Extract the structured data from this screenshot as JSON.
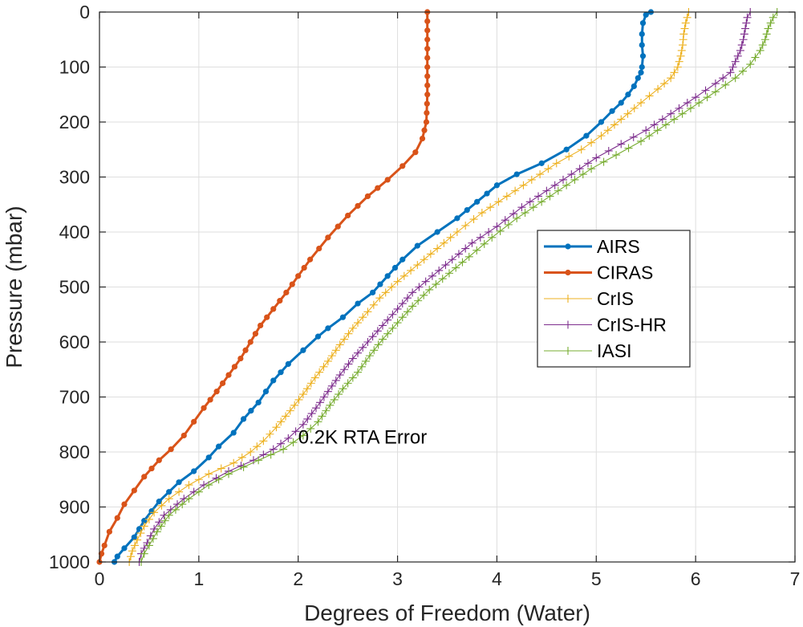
{
  "chart_data": {
    "type": "line",
    "title": "",
    "xlabel": "Degrees of Freedom (Water)",
    "ylabel": "Pressure (mbar)",
    "xlim": [
      0,
      7
    ],
    "ylim": [
      0,
      1000
    ],
    "y_reversed": true,
    "x_ticks": [
      "0",
      "1",
      "2",
      "3",
      "4",
      "5",
      "6",
      "7"
    ],
    "y_ticks": [
      "0",
      "100",
      "200",
      "300",
      "400",
      "500",
      "600",
      "700",
      "800",
      "900",
      "1000"
    ],
    "grid": true,
    "legend_position": "right-center",
    "annotation": "0.2K RTA Error",
    "series": [
      {
        "name": "AIRS",
        "color": "#0072BD",
        "marker": "dot",
        "points": [
          [
            5.55,
            0
          ],
          [
            5.5,
            5
          ],
          [
            5.47,
            20
          ],
          [
            5.46,
            40
          ],
          [
            5.46,
            60
          ],
          [
            5.47,
            80
          ],
          [
            5.46,
            100
          ],
          [
            5.45,
            110
          ],
          [
            5.42,
            120
          ],
          [
            5.38,
            135
          ],
          [
            5.32,
            150
          ],
          [
            5.25,
            165
          ],
          [
            5.16,
            180
          ],
          [
            5.05,
            200
          ],
          [
            4.9,
            225
          ],
          [
            4.7,
            250
          ],
          [
            4.45,
            275
          ],
          [
            4.2,
            295
          ],
          [
            4.0,
            315
          ],
          [
            3.8,
            345
          ],
          [
            3.6,
            375
          ],
          [
            3.4,
            400
          ],
          [
            3.2,
            425
          ],
          [
            3.05,
            450
          ],
          [
            2.9,
            480
          ],
          [
            2.75,
            510
          ],
          [
            2.6,
            530
          ],
          [
            2.45,
            555
          ],
          [
            2.3,
            575
          ],
          [
            2.2,
            590
          ],
          [
            2.05,
            615
          ],
          [
            1.9,
            640
          ],
          [
            1.75,
            670
          ],
          [
            1.6,
            710
          ],
          [
            1.45,
            740
          ],
          [
            1.35,
            765
          ],
          [
            1.2,
            790
          ],
          [
            1.1,
            810
          ],
          [
            0.95,
            835
          ],
          [
            0.8,
            855
          ],
          [
            0.6,
            890
          ],
          [
            0.45,
            925
          ],
          [
            0.35,
            955
          ],
          [
            0.25,
            975
          ],
          [
            0.18,
            990
          ],
          [
            0.15,
            1000
          ]
        ]
      },
      {
        "name": "CIRAS",
        "color": "#D95319",
        "marker": "dot",
        "points": [
          [
            3.3,
            0
          ],
          [
            3.3,
            50
          ],
          [
            3.3,
            100
          ],
          [
            3.3,
            150
          ],
          [
            3.29,
            200
          ],
          [
            3.25,
            230
          ],
          [
            3.18,
            255
          ],
          [
            3.05,
            280
          ],
          [
            2.9,
            305
          ],
          [
            2.7,
            335
          ],
          [
            2.5,
            370
          ],
          [
            2.3,
            410
          ],
          [
            2.12,
            450
          ],
          [
            2.0,
            480
          ],
          [
            1.88,
            510
          ],
          [
            1.75,
            540
          ],
          [
            1.62,
            570
          ],
          [
            1.52,
            600
          ],
          [
            1.42,
            630
          ],
          [
            1.3,
            660
          ],
          [
            1.18,
            690
          ],
          [
            1.05,
            720
          ],
          [
            0.95,
            745
          ],
          [
            0.85,
            770
          ],
          [
            0.72,
            795
          ],
          [
            0.6,
            815
          ],
          [
            0.45,
            845
          ],
          [
            0.35,
            870
          ],
          [
            0.25,
            895
          ],
          [
            0.18,
            920
          ],
          [
            0.1,
            945
          ],
          [
            0.05,
            970
          ],
          [
            0.02,
            985
          ],
          [
            0.0,
            1000
          ]
        ]
      },
      {
        "name": "CrIS",
        "color": "#EDB120",
        "marker": "plus",
        "points": [
          [
            5.93,
            0
          ],
          [
            5.9,
            20
          ],
          [
            5.88,
            40
          ],
          [
            5.87,
            60
          ],
          [
            5.85,
            80
          ],
          [
            5.82,
            100
          ],
          [
            5.75,
            120
          ],
          [
            5.62,
            140
          ],
          [
            5.45,
            165
          ],
          [
            5.25,
            195
          ],
          [
            5.05,
            225
          ],
          [
            4.85,
            250
          ],
          [
            4.6,
            275
          ],
          [
            4.35,
            305
          ],
          [
            4.1,
            335
          ],
          [
            3.85,
            365
          ],
          [
            3.6,
            400
          ],
          [
            3.4,
            430
          ],
          [
            3.2,
            460
          ],
          [
            3.0,
            490
          ],
          [
            2.82,
            520
          ],
          [
            2.7,
            545
          ],
          [
            2.55,
            575
          ],
          [
            2.42,
            605
          ],
          [
            2.3,
            635
          ],
          [
            2.17,
            665
          ],
          [
            2.05,
            695
          ],
          [
            1.92,
            725
          ],
          [
            1.78,
            755
          ],
          [
            1.65,
            780
          ],
          [
            1.52,
            800
          ],
          [
            1.35,
            820
          ],
          [
            1.1,
            840
          ],
          [
            0.9,
            860
          ],
          [
            0.7,
            885
          ],
          [
            0.55,
            910
          ],
          [
            0.45,
            935
          ],
          [
            0.38,
            960
          ],
          [
            0.33,
            980
          ],
          [
            0.3,
            1000
          ]
        ]
      },
      {
        "name": "CrIS-HR",
        "color": "#7E2F8E",
        "marker": "plus",
        "points": [
          [
            6.55,
            0
          ],
          [
            6.52,
            10
          ],
          [
            6.5,
            30
          ],
          [
            6.48,
            50
          ],
          [
            6.45,
            70
          ],
          [
            6.4,
            90
          ],
          [
            6.35,
            110
          ],
          [
            6.2,
            130
          ],
          [
            6.0,
            155
          ],
          [
            5.75,
            185
          ],
          [
            5.5,
            215
          ],
          [
            5.25,
            240
          ],
          [
            5.0,
            265
          ],
          [
            4.75,
            295
          ],
          [
            4.5,
            325
          ],
          [
            4.25,
            355
          ],
          [
            4.0,
            390
          ],
          [
            3.75,
            420
          ],
          [
            3.55,
            450
          ],
          [
            3.35,
            480
          ],
          [
            3.15,
            510
          ],
          [
            3.0,
            540
          ],
          [
            2.85,
            570
          ],
          [
            2.7,
            600
          ],
          [
            2.55,
            630
          ],
          [
            2.42,
            660
          ],
          [
            2.3,
            690
          ],
          [
            2.18,
            720
          ],
          [
            2.05,
            750
          ],
          [
            1.9,
            775
          ],
          [
            1.75,
            795
          ],
          [
            1.55,
            815
          ],
          [
            1.3,
            835
          ],
          [
            1.05,
            860
          ],
          [
            0.85,
            885
          ],
          [
            0.65,
            915
          ],
          [
            0.55,
            940
          ],
          [
            0.48,
            965
          ],
          [
            0.42,
            985
          ],
          [
            0.4,
            1000
          ]
        ]
      },
      {
        "name": "IASI",
        "color": "#77AC30",
        "marker": "plus",
        "points": [
          [
            6.82,
            0
          ],
          [
            6.78,
            10
          ],
          [
            6.73,
            30
          ],
          [
            6.7,
            50
          ],
          [
            6.65,
            70
          ],
          [
            6.55,
            95
          ],
          [
            6.4,
            120
          ],
          [
            6.2,
            145
          ],
          [
            5.95,
            175
          ],
          [
            5.7,
            205
          ],
          [
            5.45,
            235
          ],
          [
            5.2,
            260
          ],
          [
            4.95,
            285
          ],
          [
            4.7,
            315
          ],
          [
            4.45,
            345
          ],
          [
            4.2,
            375
          ],
          [
            3.95,
            410
          ],
          [
            3.72,
            445
          ],
          [
            3.52,
            475
          ],
          [
            3.32,
            505
          ],
          [
            3.15,
            535
          ],
          [
            3.0,
            565
          ],
          [
            2.85,
            595
          ],
          [
            2.72,
            625
          ],
          [
            2.6,
            655
          ],
          [
            2.45,
            685
          ],
          [
            2.32,
            715
          ],
          [
            2.2,
            745
          ],
          [
            2.05,
            770
          ],
          [
            1.85,
            795
          ],
          [
            1.6,
            815
          ],
          [
            1.3,
            840
          ],
          [
            1.1,
            860
          ],
          [
            0.9,
            885
          ],
          [
            0.7,
            915
          ],
          [
            0.58,
            945
          ],
          [
            0.5,
            970
          ],
          [
            0.45,
            985
          ],
          [
            0.42,
            1000
          ]
        ]
      }
    ]
  }
}
